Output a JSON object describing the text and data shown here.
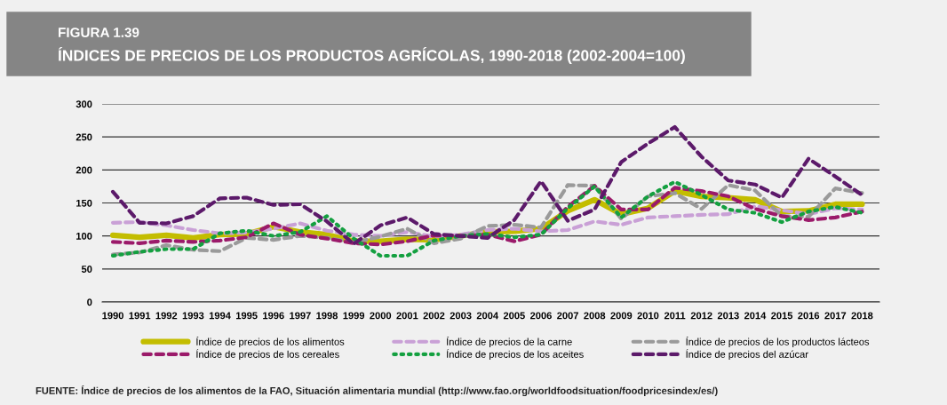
{
  "chart_data": {
    "type": "line",
    "title": "FIGURA 1.39",
    "subtitle": "ÍNDICES DE PRECIOS DE LOS PRODUCTOS AGRÍCOLAS, 1990-2018 (2002-2004=100)",
    "categories": [
      "1990",
      "1991",
      "1992",
      "1993",
      "1994",
      "1995",
      "1996",
      "1997",
      "1998",
      "1999",
      "2000",
      "2001",
      "2002",
      "2003",
      "2004",
      "2005",
      "2006",
      "2007",
      "2008",
      "2009",
      "2010",
      "2011",
      "2012",
      "2013",
      "2014",
      "2015",
      "2016",
      "2017",
      "2018"
    ],
    "series": [
      {
        "name": "Índice de precios de los alimentos",
        "color": "#c3bd00",
        "line_style": "solid",
        "values": [
          101,
          98,
          101,
          97,
          102,
          103,
          114,
          106,
          102,
          92,
          92,
          95,
          94,
          100,
          106,
          107,
          111,
          138,
          155,
          133,
          142,
          168,
          160,
          158,
          155,
          137,
          138,
          148,
          148
        ]
      },
      {
        "name": "Índice de precios de la carne",
        "color": "#c9a0d6",
        "line_style": "dashed",
        "values": [
          120,
          121,
          116,
          109,
          104,
          105,
          111,
          119,
          108,
          102,
          100,
          106,
          99,
          102,
          109,
          111,
          107,
          109,
          122,
          117,
          128,
          130,
          132,
          133,
          145,
          139,
          133,
          142,
          140
        ]
      },
      {
        "name": "Índice de precios de los productos lácteos",
        "color": "#9a9a9a",
        "line_style": "dashed",
        "values": [
          72,
          75,
          86,
          79,
          77,
          97,
          94,
          100,
          97,
          90,
          99,
          111,
          89,
          96,
          115,
          117,
          113,
          177,
          176,
          126,
          160,
          165,
          141,
          177,
          169,
          130,
          129,
          172,
          165
        ]
      },
      {
        "name": "Índice de precios de los cereales",
        "color": "#9b1a6a",
        "line_style": "dashed",
        "values": [
          91,
          89,
          93,
          91,
          93,
          98,
          119,
          102,
          96,
          89,
          87,
          92,
          101,
          100,
          102,
          92,
          102,
          144,
          176,
          140,
          140,
          173,
          168,
          160,
          141,
          130,
          124,
          128,
          137
        ]
      },
      {
        "name": "Índice de precios de los aceites",
        "color": "#14a040",
        "line_style": "dotted",
        "values": [
          70,
          76,
          80,
          80,
          104,
          108,
          100,
          106,
          130,
          96,
          70,
          70,
          93,
          100,
          103,
          98,
          102,
          142,
          175,
          128,
          160,
          182,
          162,
          140,
          135,
          121,
          137,
          144,
          135
        ]
      },
      {
        "name": "Índice de precios del azúcar",
        "color": "#5c1a6a",
        "line_style": "dashed",
        "values": [
          167,
          120,
          119,
          130,
          157,
          158,
          147,
          148,
          122,
          88,
          116,
          128,
          103,
          100,
          97,
          124,
          183,
          123,
          140,
          212,
          240,
          265,
          220,
          184,
          178,
          158,
          217,
          190,
          162
        ]
      }
    ],
    "ylim": [
      0,
      300
    ],
    "yticks": [
      0,
      50,
      100,
      150,
      200,
      250,
      300
    ],
    "grid": "y",
    "legend": "bottom",
    "annotations": [
      "FUENTE: Índice de precios de los alimentos de la FAO, Situación alimentaria mundial (http://www.fao.org/worldfoodsituation/foodpricesindex/es/)"
    ]
  }
}
